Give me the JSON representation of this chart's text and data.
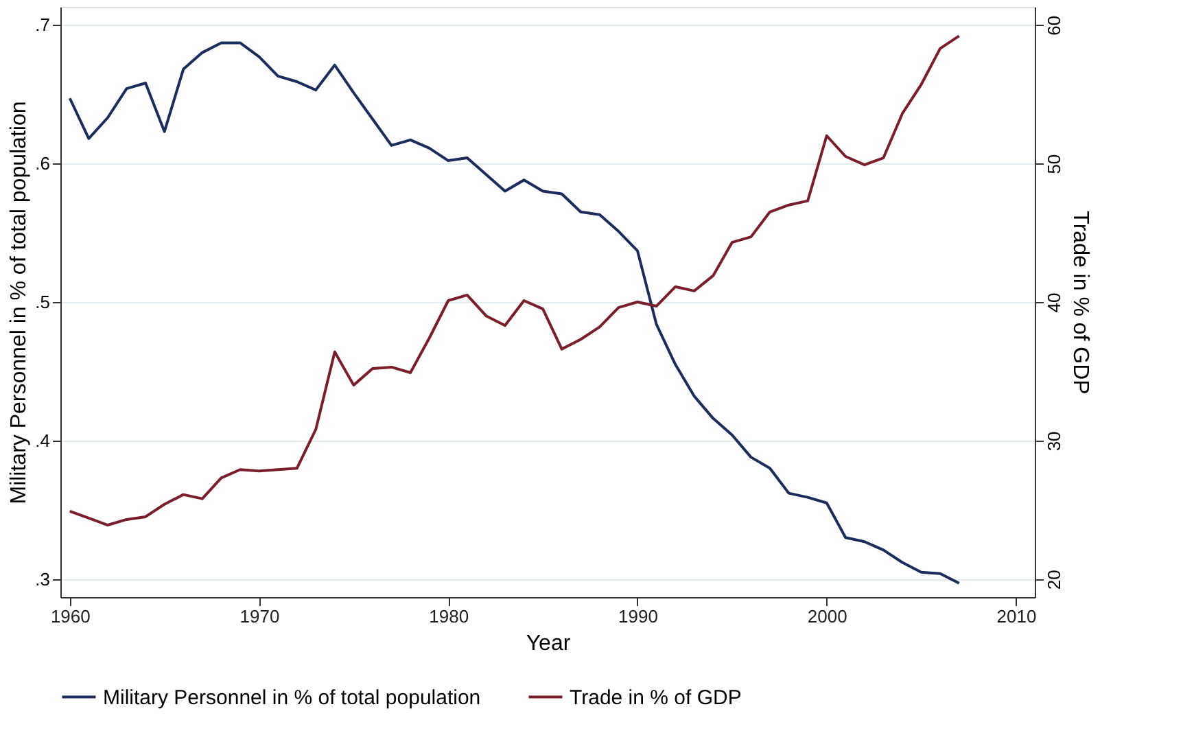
{
  "chart_data": {
    "type": "line",
    "xlabel": "Year",
    "ylabel": "Military Personnel in % of total population",
    "y2label": "Trade in % of GDP",
    "x": [
      1960,
      1961,
      1962,
      1963,
      1964,
      1965,
      1966,
      1967,
      1968,
      1969,
      1970,
      1971,
      1972,
      1973,
      1974,
      1975,
      1976,
      1977,
      1978,
      1979,
      1980,
      1981,
      1982,
      1983,
      1984,
      1985,
      1986,
      1987,
      1988,
      1989,
      1990,
      1991,
      1992,
      1993,
      1994,
      1995,
      1996,
      1997,
      1998,
      1999,
      2000,
      2001,
      2002,
      2003,
      2004,
      2005,
      2006,
      2007
    ],
    "series": [
      {
        "name": "Military Personnel in % of total population",
        "color": "#1b2d5c",
        "axis": "y",
        "values": [
          0.647,
          0.618,
          0.633,
          0.654,
          0.658,
          0.623,
          0.668,
          0.68,
          0.687,
          0.687,
          0.677,
          0.663,
          0.659,
          0.653,
          0.671,
          0.651,
          0.632,
          0.613,
          0.617,
          0.611,
          0.602,
          0.604,
          0.592,
          0.58,
          0.588,
          0.58,
          0.578,
          0.565,
          0.563,
          0.551,
          0.537,
          0.484,
          0.455,
          0.432,
          0.416,
          0.404,
          0.388,
          0.38,
          0.362,
          0.359,
          0.355,
          0.33,
          0.327,
          0.321,
          0.312,
          0.305,
          0.304,
          0.297
        ]
      },
      {
        "name": "Trade in % of GDP",
        "color": "#7a1f2a",
        "axis": "y2",
        "values": [
          24.9,
          24.4,
          23.9,
          24.3,
          24.5,
          25.4,
          26.1,
          25.8,
          27.3,
          27.9,
          27.8,
          27.9,
          28.0,
          30.8,
          36.4,
          34.0,
          35.2,
          35.3,
          34.9,
          37.4,
          40.1,
          40.5,
          39.0,
          38.3,
          40.1,
          39.5,
          36.6,
          37.3,
          38.2,
          39.6,
          40.0,
          39.7,
          41.1,
          40.8,
          41.9,
          44.3,
          44.7,
          46.5,
          47.0,
          47.3,
          52.0,
          50.5,
          49.9,
          50.4,
          53.6,
          55.7,
          58.3,
          59.2
        ]
      }
    ],
    "xlim": [
      1959.5,
      2011
    ],
    "xticks": [
      1960,
      1970,
      1980,
      1990,
      2000,
      2010
    ],
    "ylim": [
      0.287,
      0.713
    ],
    "yticks": [
      {
        "value": 0.3,
        "label": ".3"
      },
      {
        "value": 0.4,
        "label": ".4"
      },
      {
        "value": 0.5,
        "label": ".5"
      },
      {
        "value": 0.6,
        "label": ".6"
      },
      {
        "value": 0.7,
        "label": ".7"
      }
    ],
    "y2lim": [
      18.7,
      61.3
    ],
    "y2ticks": [
      20,
      30,
      40,
      50,
      60
    ],
    "grid": "y",
    "legend": "bottom",
    "marker": "none",
    "line_style": "solid"
  }
}
